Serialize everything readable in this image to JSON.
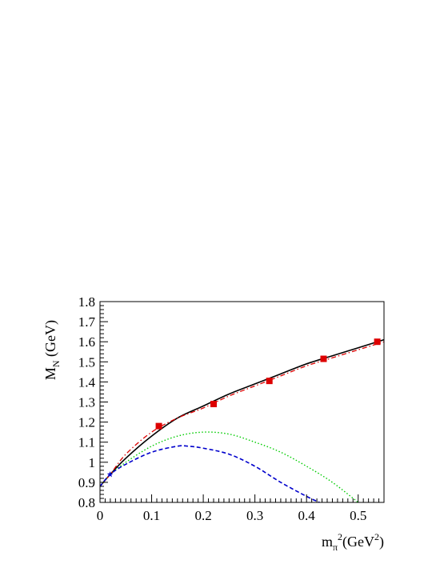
{
  "chart_data": {
    "type": "line",
    "xlabel": {
      "base": "m",
      "sub": "π",
      "sup": "2",
      "unit_pre": "(GeV",
      "unit_sup": "2",
      "unit_post": ")"
    },
    "ylabel": {
      "base": "M",
      "sub": "N",
      "rest": " (GeV)"
    },
    "xlim": [
      0,
      0.55
    ],
    "ylim": [
      0.8,
      1.8
    ],
    "x_ticks": [
      0,
      0.1,
      0.2,
      0.3,
      0.4,
      0.5
    ],
    "x_tick_labels": [
      "0",
      "0.1",
      "0.2",
      "0.3",
      "0.4",
      "0.5"
    ],
    "y_ticks": [
      0.8,
      0.9,
      1.0,
      1.1,
      1.2,
      1.3,
      1.4,
      1.5,
      1.6,
      1.7,
      1.8
    ],
    "y_tick_labels": [
      "0.8",
      "0.9",
      "1",
      "1.1",
      "1.2",
      "1.3",
      "1.4",
      "1.5",
      "1.6",
      "1.7",
      "1.8"
    ],
    "grid": false,
    "legend": "none",
    "series": [
      {
        "style": "solid",
        "color": "#000000",
        "x": [
          0,
          0.02,
          0.05,
          0.1,
          0.15,
          0.2,
          0.25,
          0.3,
          0.35,
          0.4,
          0.45,
          0.5,
          0.55
        ],
        "y": [
          0.88,
          0.94,
          1.02,
          1.13,
          1.22,
          1.28,
          1.34,
          1.39,
          1.44,
          1.49,
          1.53,
          1.57,
          1.61
        ]
      },
      {
        "style": "dashdot",
        "color": "#dd0000",
        "x": [
          0,
          0.02,
          0.05,
          0.1,
          0.15,
          0.2,
          0.25,
          0.3,
          0.35,
          0.4,
          0.45,
          0.5,
          0.55
        ],
        "y": [
          0.88,
          0.94,
          1.04,
          1.15,
          1.22,
          1.27,
          1.33,
          1.38,
          1.43,
          1.48,
          1.52,
          1.56,
          1.6
        ]
      },
      {
        "style": "dotted",
        "color": "#00cc00",
        "x": [
          0,
          0.02,
          0.05,
          0.1,
          0.15,
          0.2,
          0.25,
          0.3,
          0.35,
          0.4,
          0.45,
          0.5
        ],
        "y": [
          0.88,
          0.94,
          1.0,
          1.08,
          1.13,
          1.15,
          1.14,
          1.1,
          1.05,
          0.98,
          0.9,
          0.8
        ]
      },
      {
        "style": "dashed",
        "color": "#0000cc",
        "x": [
          0,
          0.02,
          0.05,
          0.1,
          0.15,
          0.17,
          0.2,
          0.25,
          0.3,
          0.35,
          0.4,
          0.425
        ],
        "y": [
          0.88,
          0.94,
          0.99,
          1.05,
          1.08,
          1.08,
          1.07,
          1.04,
          0.98,
          0.9,
          0.83,
          0.8
        ]
      }
    ],
    "markers": [
      {
        "name": "lattice",
        "shape": "square",
        "color": "#dd0000",
        "x": [
          0.114,
          0.22,
          0.328,
          0.433,
          0.537
        ],
        "y": [
          1.18,
          1.29,
          1.405,
          1.515,
          1.6
        ]
      },
      {
        "name": "physical",
        "shape": "star",
        "color": "#0000cc",
        "x": [
          0.0195
        ],
        "y": [
          0.939
        ]
      }
    ]
  }
}
